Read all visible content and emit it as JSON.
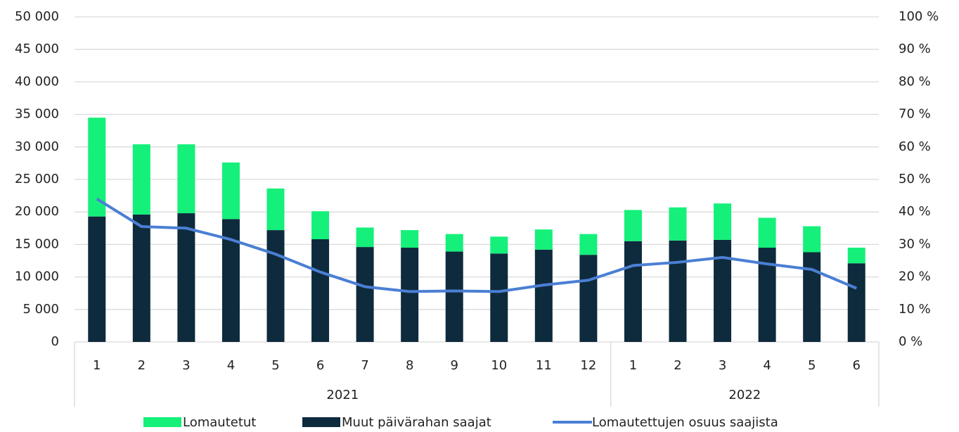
{
  "chart_data": {
    "type": "bar",
    "groups": [
      {
        "name": "2021",
        "categories": [
          "1",
          "2",
          "3",
          "4",
          "5",
          "6",
          "7",
          "8",
          "9",
          "10",
          "11",
          "12"
        ]
      },
      {
        "name": "2022",
        "categories": [
          "1",
          "2",
          "3",
          "4",
          "5",
          "6"
        ]
      }
    ],
    "series": [
      {
        "name": "Lomautetut",
        "type": "bar",
        "color": "#14f07a",
        "values": [
          15200,
          10800,
          10600,
          8700,
          6400,
          4300,
          3000,
          2700,
          2700,
          2600,
          3100,
          3200,
          4800,
          5100,
          5600,
          4600,
          4000,
          2400
        ]
      },
      {
        "name": "Muut päivärahan saajat",
        "type": "bar",
        "color": "#0e2a3d",
        "values": [
          19300,
          19600,
          19800,
          18900,
          17200,
          15800,
          14600,
          14500,
          13900,
          13600,
          14200,
          13400,
          15500,
          15600,
          15700,
          14500,
          13800,
          12100
        ]
      },
      {
        "name": "Lomautettujen osuus saajista",
        "type": "line",
        "axis": "y2",
        "color": "#4a7fd4",
        "values": [
          44,
          35.5,
          35,
          31.5,
          27,
          21.5,
          17,
          15.5,
          15.7,
          15.5,
          17.5,
          19,
          23.5,
          24.5,
          26,
          24,
          22.3,
          16.5
        ]
      }
    ],
    "stacked": true,
    "ylim": [
      0,
      50000
    ],
    "yticks": [
      0,
      {
        "value": 5000,
        "label": "5 000"
      },
      {
        "value": 10000,
        "label": "10 000"
      },
      {
        "value": 15000,
        "label": "15 000"
      },
      {
        "value": 20000,
        "label": "20 000"
      },
      {
        "value": 25000,
        "label": "25 000"
      },
      {
        "value": 30000,
        "label": "30 000"
      },
      {
        "value": 35000,
        "label": "35 000"
      },
      {
        "value": 40000,
        "label": "40 000"
      },
      {
        "value": 45000,
        "label": "45 000"
      },
      {
        "value": 50000,
        "label": "50 000"
      }
    ],
    "y2lim": [
      0,
      100
    ],
    "y2ticks": [
      {
        "value": 0,
        "label": "0 %"
      },
      {
        "value": 10,
        "label": "10 %"
      },
      {
        "value": 20,
        "label": "20 %"
      },
      {
        "value": 30,
        "label": "30 %"
      },
      {
        "value": 40,
        "label": "40 %"
      },
      {
        "value": 50,
        "label": "50 %"
      },
      {
        "value": 60,
        "label": "60 %"
      },
      {
        "value": 70,
        "label": "70 %"
      },
      {
        "value": 80,
        "label": "80 %"
      },
      {
        "value": 90,
        "label": "90 %"
      },
      {
        "value": 100,
        "label": "100 %"
      }
    ],
    "grid": true,
    "legend": "bottom"
  }
}
